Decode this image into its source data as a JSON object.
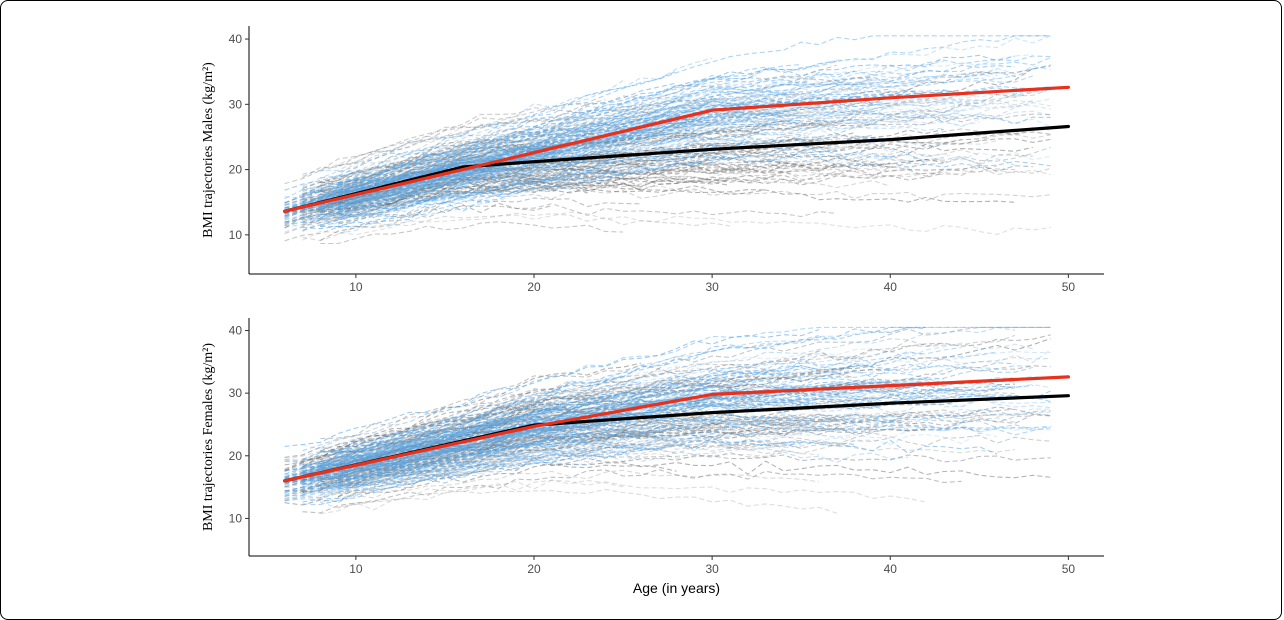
{
  "chart_data": [
    {
      "type": "line",
      "panel": "males",
      "ylabel": "BMI trajectories Males (kg/m²)",
      "xlabel": "",
      "xlim": [
        4,
        52
      ],
      "ylim": [
        4,
        42
      ],
      "xticks": [
        10,
        20,
        30,
        40,
        50
      ],
      "yticks": [
        10,
        20,
        30,
        40
      ],
      "grid": false,
      "colors": {
        "group_a_mean": "#e8301c",
        "group_b_mean": "#000000",
        "group_a_individual": "#5aa7e6",
        "group_b_individual": "#6b6b6b"
      },
      "series": [
        {
          "x": [
            6,
            16,
            30,
            40,
            50
          ],
          "y": [
            13.6,
            20,
            29.1,
            31,
            32.6
          ],
          "color": "#e8301c",
          "style": "solid"
        },
        {
          "x": [
            6,
            16,
            20,
            30,
            40,
            50
          ],
          "y": [
            13.6,
            20.4,
            21.2,
            23.1,
            24.6,
            26.6
          ],
          "color": "#000000",
          "style": "solid"
        }
      ],
      "individual_trajectories": {
        "style": "dashed",
        "age_range": [
          6,
          49
        ],
        "bmi_range": [
          6.5,
          39.5
        ]
      }
    },
    {
      "type": "line",
      "panel": "females",
      "ylabel": "BMI trajectories Females (kg/m²)",
      "xlabel": "Age (in years)",
      "xlim": [
        4,
        52
      ],
      "ylim": [
        4,
        42
      ],
      "xticks": [
        10,
        20,
        30,
        40,
        50
      ],
      "yticks": [
        10,
        20,
        30,
        40
      ],
      "grid": false,
      "colors": {
        "group_a_mean": "#e8301c",
        "group_b_mean": "#000000",
        "group_a_individual": "#5aa7e6",
        "group_b_individual": "#6b6b6b"
      },
      "series": [
        {
          "x": [
            6,
            20,
            30,
            40,
            50
          ],
          "y": [
            16,
            24.7,
            29.8,
            31.2,
            32.6
          ],
          "color": "#e8301c",
          "style": "solid"
        },
        {
          "x": [
            6,
            20,
            30,
            40,
            50
          ],
          "y": [
            16,
            24.9,
            26.9,
            28.4,
            29.6
          ],
          "color": "#000000",
          "style": "solid"
        }
      ],
      "individual_trajectories": {
        "style": "dashed",
        "age_range": [
          6,
          49
        ],
        "bmi_range": [
          8,
          39.5
        ]
      }
    }
  ]
}
